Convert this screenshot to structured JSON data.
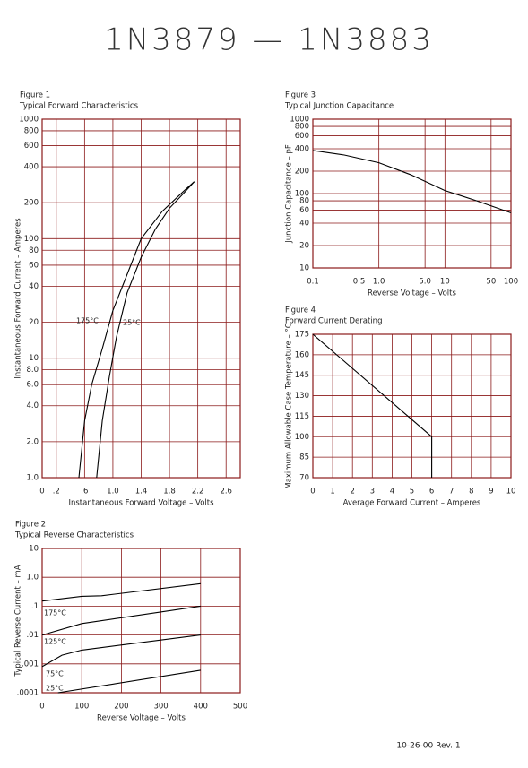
{
  "title": "1N3879 — 1N3883",
  "footer": "10-26-00   Rev. 1",
  "chart_data": [
    {
      "type": "line",
      "figure": "Figure 1",
      "title": "Typical Forward Characteristics",
      "xlabel": "Instantaneous Forward Voltage – Volts",
      "ylabel": "Instantaneous Forward Current – Amperes",
      "xscale": "linear",
      "yscale": "log",
      "grid": true,
      "grid_color": "#8b1a1a",
      "xlim": [
        0,
        2.8
      ],
      "ylim": [
        1,
        1000
      ],
      "xticks": [
        0,
        {
          "value": 0.2,
          "label": ".2"
        },
        {
          "value": 0.6,
          "label": ".6"
        },
        {
          "value": 1,
          "label": "1.0"
        },
        1.4,
        1.8,
        2.2,
        2.6
      ],
      "yticks": [
        {
          "value": 1,
          "label": "1.0"
        },
        {
          "value": 2,
          "label": "2.0"
        },
        {
          "value": 4,
          "label": "4.0"
        },
        {
          "value": 6,
          "label": "6.0"
        },
        {
          "value": 8,
          "label": "8.0"
        },
        10,
        20,
        40,
        60,
        80,
        100,
        200,
        400,
        600,
        800,
        1000
      ],
      "series": [
        {
          "name": "175°C",
          "color": "#000000",
          "x": [
            0.52,
            0.6,
            0.7,
            0.85,
            1.0,
            1.2,
            1.4,
            1.7,
            2.0,
            2.15
          ],
          "values": [
            1,
            3,
            6,
            12,
            25,
            50,
            100,
            170,
            250,
            300
          ]
        },
        {
          "name": "25°C",
          "color": "#000000",
          "x": [
            0.77,
            0.85,
            0.95,
            1.05,
            1.2,
            1.4,
            1.6,
            1.8,
            2.0,
            2.15
          ],
          "values": [
            1,
            3,
            7,
            15,
            35,
            70,
            120,
            180,
            240,
            300
          ]
        }
      ]
    },
    {
      "type": "line",
      "figure": "Figure 3",
      "title": "Typical Junction Capacitance",
      "xlabel": "Reverse Voltage – Volts",
      "ylabel": "Junction Capacitance – pF",
      "xscale": "log",
      "yscale": "log",
      "grid": true,
      "grid_color": "#8b1a1a",
      "xlim": [
        0.1,
        100
      ],
      "ylim": [
        10,
        1000
      ],
      "xticks": [
        0.1,
        0.5,
        {
          "value": 1,
          "label": "1.0"
        },
        {
          "value": 5,
          "label": "5.0"
        },
        10,
        50,
        100
      ],
      "yticks": [
        10,
        20,
        40,
        60,
        80,
        100,
        200,
        400,
        600,
        800,
        1000
      ],
      "series": [
        {
          "color": "#000000",
          "x": [
            0.1,
            0.3,
            1,
            3,
            10,
            30,
            100
          ],
          "values": [
            380,
            330,
            260,
            180,
            110,
            80,
            55
          ]
        }
      ]
    },
    {
      "type": "line",
      "figure": "Figure 4",
      "title": "Forward Current Derating",
      "xlabel": "Average Forward Current – Amperes",
      "ylabel": "Maximum Allowable Case Temperature – °C",
      "xscale": "linear",
      "yscale": "linear",
      "grid": true,
      "grid_color": "#8b1a1a",
      "xlim": [
        0,
        10
      ],
      "ylim": [
        70,
        175
      ],
      "xticks": [
        0,
        1,
        2,
        3,
        4,
        5,
        6,
        7,
        8,
        9,
        10
      ],
      "yticks": [
        70,
        85,
        100,
        115,
        130,
        145,
        160,
        175
      ],
      "series": [
        {
          "color": "#000000",
          "x": [
            0,
            6,
            6
          ],
          "values": [
            175,
            100,
            70
          ]
        }
      ]
    },
    {
      "type": "line",
      "figure": "Figure 2",
      "title": "Typical Reverse Characteristics",
      "xlabel": "Reverse Voltage – Volts",
      "ylabel": "Typical Reverse Current – mA",
      "xscale": "linear",
      "yscale": "log",
      "grid": true,
      "grid_color": "#8b1a1a",
      "xlim": [
        0,
        500
      ],
      "ylim": [
        0.0001,
        10
      ],
      "xticks": [
        0,
        100,
        200,
        300,
        400,
        500
      ],
      "yticks": [
        10,
        {
          "value": 1,
          "label": "1.0"
        },
        {
          "value": 0.1,
          "label": ".1"
        },
        {
          "value": 0.01,
          "label": ".01"
        },
        {
          "value": 0.001,
          "label": ".001"
        },
        {
          "value": 0.0001,
          "label": ".0001"
        }
      ],
      "series": [
        {
          "name": "175°C",
          "color": "#000000",
          "x": [
            0,
            100,
            150,
            400
          ],
          "values": [
            0.15,
            0.22,
            0.23,
            0.6
          ]
        },
        {
          "name": "125°C",
          "color": "#000000",
          "x": [
            0,
            100,
            400
          ],
          "values": [
            0.01,
            0.025,
            0.1
          ]
        },
        {
          "name": "75°C",
          "color": "#000000",
          "x": [
            0,
            50,
            100,
            400
          ],
          "values": [
            0.0008,
            0.002,
            0.003,
            0.01
          ]
        },
        {
          "name": "25°C",
          "color": "#000000",
          "x": [
            40,
            400
          ],
          "values": [
            0.0001,
            0.0006
          ]
        }
      ]
    }
  ]
}
